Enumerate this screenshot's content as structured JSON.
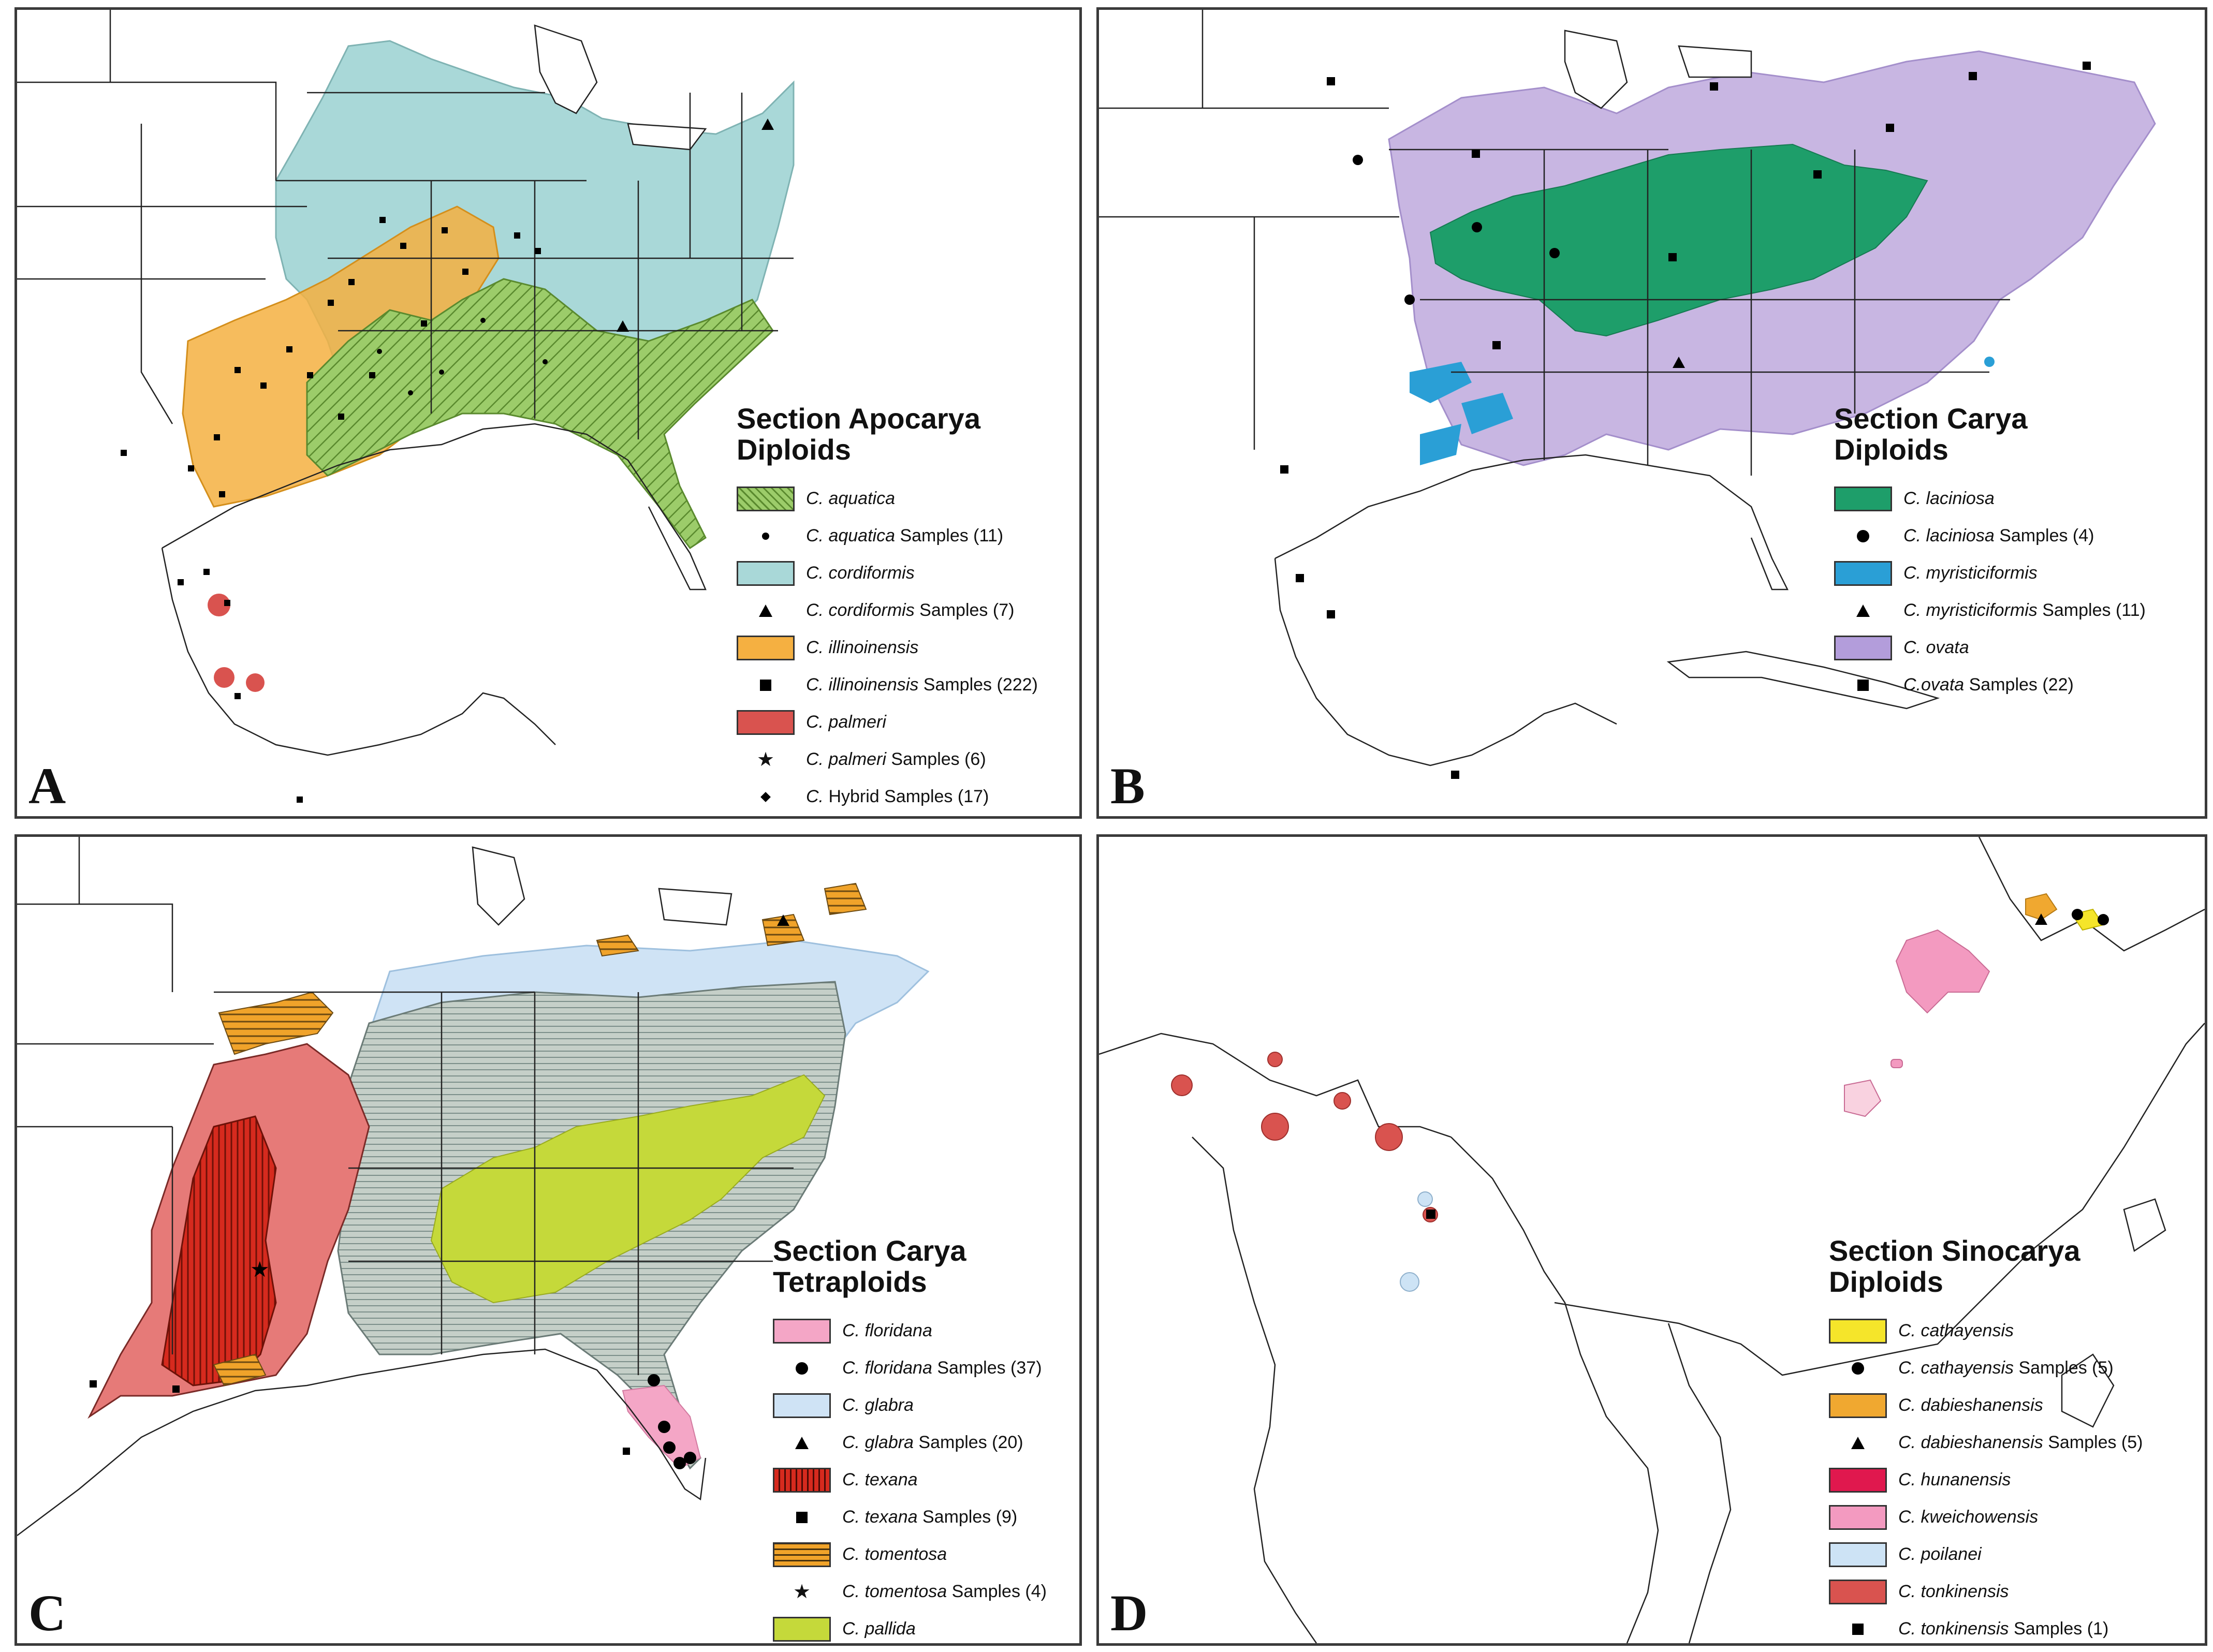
{
  "panels": [
    {
      "id": "A",
      "letter": "A",
      "legend_title": "Section Apocarya\nDiploids",
      "items": [
        {
          "kind": "swatch",
          "genus": "C. aquatica",
          "suffix": "",
          "color": "#9ccc6a",
          "pattern": "hatch",
          "name": "aquatica-range"
        },
        {
          "kind": "marker",
          "marker": "dot",
          "genus": "C. aquatica",
          "suffix": " Samples (11)",
          "name": "aquatica-samples"
        },
        {
          "kind": "swatch",
          "genus": "C. cordiformis",
          "suffix": "",
          "color": "#a9d8d8",
          "pattern": "solid",
          "name": "cordiformis-range"
        },
        {
          "kind": "marker",
          "marker": "tri",
          "genus": "C. cordiformis",
          "suffix": " Samples (7)",
          "name": "cordiformis-samples"
        },
        {
          "kind": "swatch",
          "genus": "C. illinoinensis",
          "suffix": "",
          "color": "#f5b041",
          "pattern": "solid",
          "name": "illinoinensis-range"
        },
        {
          "kind": "marker",
          "marker": "square",
          "genus": "C. illinoinensis",
          "suffix": " Samples (222)",
          "name": "illinoinensis-samples"
        },
        {
          "kind": "swatch",
          "genus": "C. palmeri",
          "suffix": "",
          "color": "#d9534f",
          "pattern": "solid",
          "name": "palmeri-range"
        },
        {
          "kind": "marker",
          "marker": "star",
          "genus": "C. palmeri",
          "suffix": " Samples (6)",
          "name": "palmeri-samples"
        },
        {
          "kind": "marker",
          "marker": "diamond",
          "genus": "C.",
          "suffix": " Hybrid Samples (17)",
          "name": "hybrid-samples"
        }
      ]
    },
    {
      "id": "B",
      "letter": "B",
      "legend_title": "Section Carya\nDiploids",
      "items": [
        {
          "kind": "swatch",
          "genus": "C. laciniosa",
          "suffix": "",
          "color": "#1e9e6a",
          "pattern": "solid",
          "name": "laciniosa-range"
        },
        {
          "kind": "marker",
          "marker": "circle",
          "genus": "C. laciniosa",
          "suffix": " Samples (4)",
          "name": "laciniosa-samples"
        },
        {
          "kind": "swatch",
          "genus": "C. myristiciformis",
          "suffix": "",
          "color": "#2a9fd6",
          "pattern": "solid",
          "name": "myristiciformis-range"
        },
        {
          "kind": "marker",
          "marker": "tri",
          "genus": "C. myristiciformis",
          "suffix": " Samples (11)",
          "name": "myristiciformis-samples"
        },
        {
          "kind": "swatch",
          "genus": "C. ovata",
          "suffix": "",
          "color": "#b39ddb",
          "pattern": "solid",
          "name": "ovata-range"
        },
        {
          "kind": "marker",
          "marker": "square",
          "genus": "C.ovata",
          "suffix": " Samples (22)",
          "name": "ovata-samples"
        }
      ]
    },
    {
      "id": "C",
      "letter": "C",
      "legend_title": "Section Carya\nTetraploids",
      "items": [
        {
          "kind": "swatch",
          "genus": "C. floridana",
          "suffix": "",
          "color": "#f4a6c6",
          "pattern": "solid",
          "name": "floridana-range"
        },
        {
          "kind": "marker",
          "marker": "circle",
          "genus": "C. floridana",
          "suffix": " Samples (37)",
          "name": "floridana-samples"
        },
        {
          "kind": "swatch",
          "genus": "C. glabra",
          "suffix": "",
          "color": "#cfe3f5",
          "pattern": "solid",
          "name": "glabra-range"
        },
        {
          "kind": "marker",
          "marker": "tri",
          "genus": "C. glabra",
          "suffix": " Samples (20)",
          "name": "glabra-samples"
        },
        {
          "kind": "swatch",
          "genus": "C. texana",
          "suffix": "",
          "color": "#d62a1e",
          "pattern": "vstripe",
          "name": "texana-range"
        },
        {
          "kind": "marker",
          "marker": "square",
          "genus": "C. texana",
          "suffix": " Samples (9)",
          "name": "texana-samples"
        },
        {
          "kind": "swatch",
          "genus": "C. tomentosa",
          "suffix": "",
          "color": "#f0a32a",
          "pattern": "hstripe",
          "name": "tomentosa-range"
        },
        {
          "kind": "marker",
          "marker": "star",
          "genus": "C. tomentosa",
          "suffix": " Samples (4)",
          "name": "tomentosa-samples"
        },
        {
          "kind": "swatch",
          "genus": "C. pallida",
          "suffix": "",
          "color": "#c5d93a",
          "pattern": "solid",
          "name": "pallida-range"
        }
      ]
    },
    {
      "id": "D",
      "letter": "D",
      "legend_title": "Section Sinocarya\nDiploids",
      "items": [
        {
          "kind": "swatch",
          "genus": "C. cathayensis",
          "suffix": "",
          "color": "#f5e52a",
          "pattern": "solid",
          "name": "cathayensis-range"
        },
        {
          "kind": "marker",
          "marker": "circle",
          "genus": "C. cathayensis",
          "suffix": " Samples (5)",
          "name": "cathayensis-samples"
        },
        {
          "kind": "swatch",
          "genus": "C. dabieshanensis",
          "suffix": "",
          "color": "#f0a830",
          "pattern": "solid",
          "name": "dabieshanensis-range"
        },
        {
          "kind": "marker",
          "marker": "tri",
          "genus": "C. dabieshanensis",
          "suffix": " Samples (5)",
          "name": "dabieshanensis-samples"
        },
        {
          "kind": "swatch",
          "genus": "C. hunanensis",
          "suffix": "",
          "color": "#e0184e",
          "pattern": "solid",
          "name": "hunanensis-range"
        },
        {
          "kind": "swatch",
          "genus": "C. kweichowensis",
          "suffix": "",
          "color": "#f39ac0",
          "pattern": "solid",
          "name": "kweichowensis-range"
        },
        {
          "kind": "swatch",
          "genus": "C. poilanei",
          "suffix": "",
          "color": "#cde3f5",
          "pattern": "solid",
          "name": "poilanei-range"
        },
        {
          "kind": "swatch",
          "genus": "C. tonkinensis",
          "suffix": "",
          "color": "#d9534f",
          "pattern": "solid",
          "name": "tonkinensis-range"
        },
        {
          "kind": "marker",
          "marker": "square",
          "genus": "C. tonkinensis",
          "suffix": " Samples (1)",
          "name": "tonkinensis-samples"
        }
      ]
    }
  ]
}
